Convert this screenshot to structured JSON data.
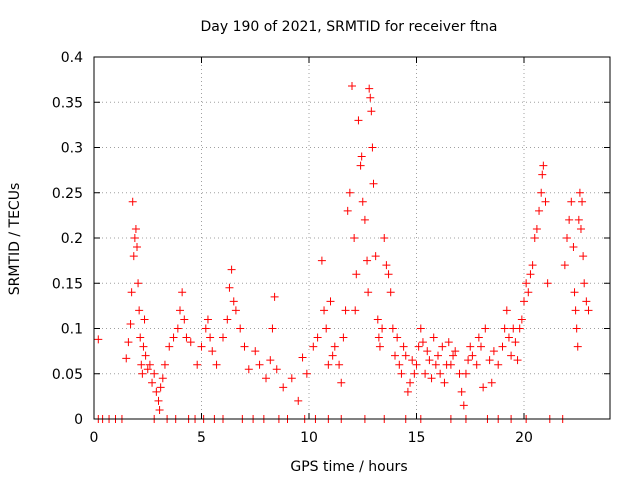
{
  "chart_data": {
    "type": "scatter",
    "title": "Day 190 of 2021, SRMTID for receiver ftna",
    "xlabel": "GPS time / hours",
    "ylabel": "SRMTID / TECUs",
    "xlim": [
      0,
      24
    ],
    "ylim": [
      0,
      0.4
    ],
    "xticks": [
      0,
      5,
      10,
      15,
      20
    ],
    "yticks": [
      0,
      0.05,
      0.1,
      0.15,
      0.2,
      0.25,
      0.3,
      0.35,
      0.4
    ],
    "xtick_labels": [
      "0",
      "5",
      "10",
      "15",
      "20"
    ],
    "ytick_labels": [
      "0",
      "0.05",
      "0.1",
      "0.15",
      "0.2",
      "0.25",
      "0.3",
      "0.35",
      "0.4"
    ],
    "grid": true,
    "legend": "none",
    "marker": "plus",
    "color": "#ff0000",
    "series": [
      {
        "name": "SRMTID",
        "points": [
          [
            0.2,
            0.088
          ],
          [
            1.5,
            0.067
          ],
          [
            1.6,
            0.085
          ],
          [
            1.7,
            0.105
          ],
          [
            1.75,
            0.14
          ],
          [
            1.8,
            0.24
          ],
          [
            1.85,
            0.18
          ],
          [
            1.9,
            0.2
          ],
          [
            1.95,
            0.21
          ],
          [
            2.0,
            0.19
          ],
          [
            2.05,
            0.15
          ],
          [
            2.1,
            0.12
          ],
          [
            2.15,
            0.09
          ],
          [
            2.2,
            0.06
          ],
          [
            2.25,
            0.05
          ],
          [
            2.3,
            0.08
          ],
          [
            2.35,
            0.11
          ],
          [
            2.4,
            0.07
          ],
          [
            2.5,
            0.055
          ],
          [
            2.6,
            0.06
          ],
          [
            2.7,
            0.04
          ],
          [
            2.8,
            0.05
          ],
          [
            2.9,
            0.03
          ],
          [
            3.0,
            0.02
          ],
          [
            3.05,
            0.01
          ],
          [
            3.1,
            0.035
          ],
          [
            3.2,
            0.045
          ],
          [
            3.3,
            0.06
          ],
          [
            3.5,
            0.08
          ],
          [
            3.7,
            0.09
          ],
          [
            3.9,
            0.1
          ],
          [
            4.0,
            0.12
          ],
          [
            4.1,
            0.14
          ],
          [
            4.2,
            0.11
          ],
          [
            4.3,
            0.09
          ],
          [
            4.5,
            0.085
          ],
          [
            4.8,
            0.06
          ],
          [
            5.0,
            0.08
          ],
          [
            5.2,
            0.1
          ],
          [
            5.3,
            0.11
          ],
          [
            5.4,
            0.09
          ],
          [
            5.5,
            0.075
          ],
          [
            5.7,
            0.06
          ],
          [
            6.0,
            0.09
          ],
          [
            6.2,
            0.11
          ],
          [
            6.3,
            0.145
          ],
          [
            6.4,
            0.165
          ],
          [
            6.5,
            0.13
          ],
          [
            6.6,
            0.12
          ],
          [
            6.8,
            0.1
          ],
          [
            7.0,
            0.08
          ],
          [
            7.2,
            0.055
          ],
          [
            7.5,
            0.075
          ],
          [
            7.7,
            0.06
          ],
          [
            8.0,
            0.045
          ],
          [
            8.2,
            0.065
          ],
          [
            8.3,
            0.1
          ],
          [
            8.4,
            0.135
          ],
          [
            8.5,
            0.055
          ],
          [
            8.8,
            0.035
          ],
          [
            9.2,
            0.045
          ],
          [
            9.5,
            0.02
          ],
          [
            9.7,
            0.068
          ],
          [
            9.9,
            0.05
          ],
          [
            10.2,
            0.08
          ],
          [
            10.4,
            0.09
          ],
          [
            10.6,
            0.175
          ],
          [
            10.7,
            0.12
          ],
          [
            10.8,
            0.1
          ],
          [
            11.0,
            0.13
          ],
          [
            11.2,
            0.08
          ],
          [
            11.4,
            0.06
          ],
          [
            11.5,
            0.04
          ],
          [
            11.6,
            0.09
          ],
          [
            11.7,
            0.12
          ],
          [
            11.8,
            0.23
          ],
          [
            11.9,
            0.25
          ],
          [
            12.0,
            0.368
          ],
          [
            12.1,
            0.2
          ],
          [
            12.2,
            0.16
          ],
          [
            12.3,
            0.33
          ],
          [
            12.4,
            0.28
          ],
          [
            12.45,
            0.29
          ],
          [
            12.5,
            0.24
          ],
          [
            12.6,
            0.22
          ],
          [
            12.7,
            0.175
          ],
          [
            12.75,
            0.14
          ],
          [
            12.8,
            0.365
          ],
          [
            12.85,
            0.355
          ],
          [
            12.9,
            0.34
          ],
          [
            12.95,
            0.3
          ],
          [
            13.0,
            0.26
          ],
          [
            13.1,
            0.18
          ],
          [
            13.2,
            0.11
          ],
          [
            13.3,
            0.08
          ],
          [
            13.4,
            0.1
          ],
          [
            13.5,
            0.2
          ],
          [
            13.6,
            0.17
          ],
          [
            13.7,
            0.16
          ],
          [
            13.8,
            0.14
          ],
          [
            13.9,
            0.1
          ],
          [
            14.0,
            0.07
          ],
          [
            14.1,
            0.09
          ],
          [
            14.2,
            0.06
          ],
          [
            14.3,
            0.05
          ],
          [
            14.4,
            0.08
          ],
          [
            14.5,
            0.07
          ],
          [
            14.7,
            0.04
          ],
          [
            14.8,
            0.065
          ],
          [
            14.9,
            0.05
          ],
          [
            15.0,
            0.06
          ],
          [
            15.1,
            0.08
          ],
          [
            15.2,
            0.1
          ],
          [
            15.3,
            0.085
          ],
          [
            15.4,
            0.05
          ],
          [
            15.5,
            0.075
          ],
          [
            15.6,
            0.065
          ],
          [
            15.8,
            0.09
          ],
          [
            15.9,
            0.06
          ],
          [
            16.0,
            0.07
          ],
          [
            16.1,
            0.05
          ],
          [
            16.2,
            0.08
          ],
          [
            16.4,
            0.06
          ],
          [
            16.5,
            0.085
          ],
          [
            16.6,
            0.06
          ],
          [
            16.7,
            0.07
          ],
          [
            16.8,
            0.075
          ],
          [
            17.0,
            0.05
          ],
          [
            17.1,
            0.03
          ],
          [
            17.2,
            0.015
          ],
          [
            17.3,
            0.05
          ],
          [
            17.4,
            0.065
          ],
          [
            17.5,
            0.08
          ],
          [
            17.6,
            0.07
          ],
          [
            17.8,
            0.06
          ],
          [
            17.9,
            0.09
          ],
          [
            18.0,
            0.08
          ],
          [
            18.2,
            0.1
          ],
          [
            18.4,
            0.065
          ],
          [
            18.5,
            0.04
          ],
          [
            18.6,
            0.075
          ],
          [
            18.8,
            0.06
          ],
          [
            19.0,
            0.08
          ],
          [
            19.1,
            0.1
          ],
          [
            19.2,
            0.12
          ],
          [
            19.3,
            0.09
          ],
          [
            19.4,
            0.07
          ],
          [
            19.5,
            0.1
          ],
          [
            19.6,
            0.085
          ],
          [
            19.7,
            0.065
          ],
          [
            19.8,
            0.1
          ],
          [
            19.9,
            0.11
          ],
          [
            20.0,
            0.13
          ],
          [
            20.1,
            0.15
          ],
          [
            20.2,
            0.14
          ],
          [
            20.3,
            0.16
          ],
          [
            20.4,
            0.17
          ],
          [
            20.5,
            0.2
          ],
          [
            20.6,
            0.21
          ],
          [
            20.7,
            0.23
          ],
          [
            20.8,
            0.25
          ],
          [
            20.85,
            0.27
          ],
          [
            20.9,
            0.28
          ],
          [
            21.0,
            0.24
          ],
          [
            21.1,
            0.15
          ],
          [
            21.9,
            0.17
          ],
          [
            22.0,
            0.2
          ],
          [
            22.1,
            0.22
          ],
          [
            22.2,
            0.24
          ],
          [
            22.3,
            0.19
          ],
          [
            22.35,
            0.14
          ],
          [
            22.4,
            0.12
          ],
          [
            22.45,
            0.1
          ],
          [
            22.5,
            0.08
          ],
          [
            22.55,
            0.22
          ],
          [
            22.6,
            0.25
          ],
          [
            22.65,
            0.21
          ],
          [
            22.7,
            0.24
          ],
          [
            22.75,
            0.18
          ],
          [
            22.8,
            0.15
          ],
          [
            22.9,
            0.13
          ],
          [
            23.0,
            0.12
          ],
          [
            14.6,
            0.03
          ],
          [
            15.7,
            0.045
          ],
          [
            16.3,
            0.04
          ],
          [
            18.1,
            0.035
          ],
          [
            10.9,
            0.06
          ],
          [
            11.1,
            0.07
          ],
          [
            12.15,
            0.12
          ],
          [
            13.25,
            0.09
          ],
          [
            0.2,
            0.0
          ],
          [
            0.4,
            0.0
          ],
          [
            0.7,
            0.0
          ],
          [
            1.0,
            0.0
          ],
          [
            1.3,
            0.0
          ],
          [
            2.8,
            0.0
          ],
          [
            3.4,
            0.0
          ],
          [
            3.8,
            0.0
          ],
          [
            4.4,
            0.0
          ],
          [
            4.7,
            0.0
          ],
          [
            5.1,
            0.0
          ],
          [
            5.6,
            0.0
          ],
          [
            6.0,
            0.0
          ],
          [
            6.9,
            0.0
          ],
          [
            7.4,
            0.0
          ],
          [
            7.9,
            0.0
          ],
          [
            8.6,
            0.0
          ],
          [
            9.0,
            0.0
          ],
          [
            9.8,
            0.0
          ],
          [
            10.3,
            0.0
          ],
          [
            10.9,
            0.0
          ],
          [
            11.5,
            0.0
          ],
          [
            12.6,
            0.0
          ],
          [
            13.5,
            0.0
          ],
          [
            14.5,
            0.0
          ],
          [
            15.2,
            0.0
          ],
          [
            16.6,
            0.0
          ],
          [
            17.3,
            0.0
          ],
          [
            18.3,
            0.0
          ],
          [
            18.8,
            0.0
          ],
          [
            19.4,
            0.0
          ],
          [
            20.1,
            0.0
          ],
          [
            21.2,
            0.0
          ],
          [
            21.8,
            0.0
          ]
        ]
      }
    ]
  }
}
